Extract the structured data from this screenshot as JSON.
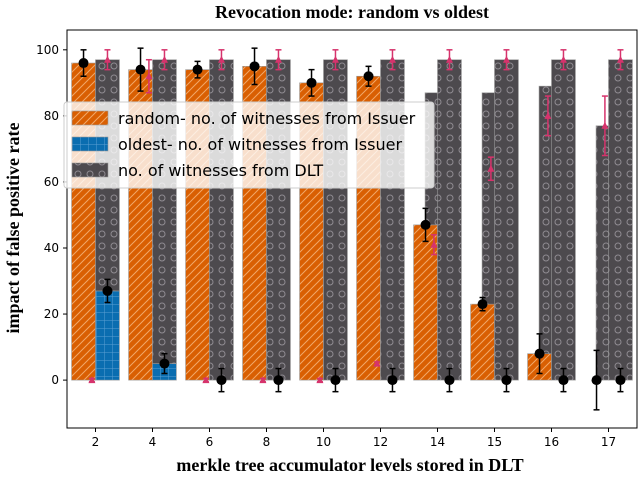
{
  "chart_data": {
    "type": "bar",
    "title": "Revocation mode: random vs oldest",
    "xlabel": "merkle tree accumulator levels stored in DLT",
    "ylabel": "impact of false positive rate",
    "categories": [
      "2",
      "4",
      "6",
      "8",
      "10",
      "12",
      "14",
      "15",
      "16",
      "17"
    ],
    "ylim": [
      -14.5,
      106
    ],
    "yticks": [
      0,
      20,
      40,
      60,
      80,
      100
    ],
    "grid": false,
    "legend_position": "upper-left",
    "series": [
      {
        "name": "random- no. of witnesses from Issuer",
        "color": "#d95f02",
        "hatch": "diagonal",
        "values": [
          96,
          94,
          94,
          95,
          90,
          92,
          47,
          23,
          8,
          0
        ],
        "error_color": "#000000",
        "errors": [
          4,
          6.5,
          2.5,
          5.5,
          4,
          3,
          5,
          2,
          6,
          9
        ]
      },
      {
        "name": "oldest- no. of witnesses from Issuer",
        "color": "#0a6db0",
        "hatch": "grid",
        "values": [
          27,
          5,
          0,
          0,
          0,
          0,
          0,
          0,
          0,
          0
        ],
        "error_color": "#000000",
        "errors": [
          3.5,
          3,
          3.5,
          3.5,
          3.5,
          3.5,
          3.5,
          3.5,
          3.5,
          3.5
        ]
      },
      {
        "name": "no. of witnesses from DLT",
        "color": "#4d4a4e",
        "hatch": "circles",
        "bar_values": [
          97,
          97,
          97,
          97,
          97,
          97,
          97,
          97,
          97,
          97
        ],
        "overlay_points": [
          0,
          92,
          0,
          0,
          0,
          5,
          41,
          64,
          80,
          77
        ],
        "overlay_errors": [
          0.5,
          5,
          0.5,
          0.5,
          0.5,
          0.5,
          3,
          3.5,
          6,
          9
        ],
        "point_values": [
          97,
          97,
          97,
          97,
          97,
          97,
          97,
          97,
          97,
          97
        ],
        "point_errors": [
          3,
          3,
          3,
          3,
          3,
          3,
          3,
          3,
          3,
          3
        ],
        "error_color": "#d6336c",
        "extra_series": {
          "random_low_values": [
            96,
            87,
            87,
            87,
            87,
            87,
            87,
            87,
            89,
            77
          ],
          "random_low_note": ""
        }
      }
    ]
  }
}
